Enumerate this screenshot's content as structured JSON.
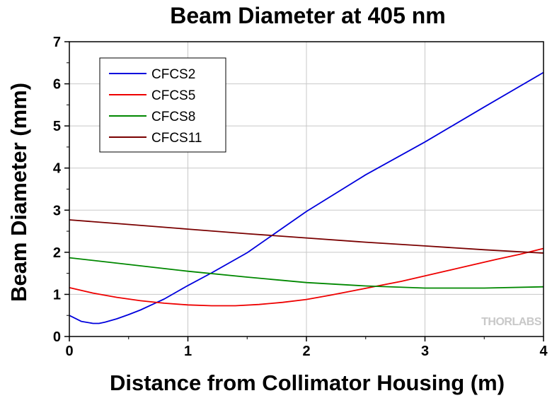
{
  "chart_data": {
    "type": "line",
    "title": "Beam Diameter at 405 nm",
    "xlabel": "Distance from Collimator Housing (m)",
    "ylabel": "Beam Diameter (mm)",
    "xlim": [
      0,
      4
    ],
    "ylim": [
      0,
      7
    ],
    "xticks": [
      "0",
      "1",
      "2",
      "3",
      "4"
    ],
    "yticks": [
      "0",
      "1",
      "2",
      "3",
      "4",
      "5",
      "6",
      "7"
    ],
    "grid": true,
    "legend_position": "top-left",
    "series": [
      {
        "name": "CFCS2",
        "color": "#0000dd",
        "x": [
          0,
          0.1,
          0.2,
          0.25,
          0.3,
          0.4,
          0.5,
          0.6,
          0.7,
          0.8,
          1.0,
          1.2,
          1.5,
          2.0,
          2.5,
          3.0,
          3.5,
          4.0
        ],
        "y": [
          0.5,
          0.36,
          0.31,
          0.31,
          0.34,
          0.42,
          0.52,
          0.63,
          0.76,
          0.89,
          1.21,
          1.51,
          1.99,
          2.97,
          3.84,
          4.62,
          5.45,
          6.27
        ]
      },
      {
        "name": "CFCS5",
        "color": "#ee0000",
        "x": [
          0,
          0.2,
          0.4,
          0.6,
          0.8,
          1.0,
          1.2,
          1.4,
          1.6,
          1.8,
          2.0,
          2.2,
          2.4,
          2.6,
          2.8,
          3.0,
          3.2,
          3.4,
          3.6,
          3.8,
          4.0
        ],
        "y": [
          1.16,
          1.03,
          0.93,
          0.85,
          0.79,
          0.75,
          0.73,
          0.73,
          0.76,
          0.81,
          0.88,
          0.98,
          1.09,
          1.2,
          1.31,
          1.44,
          1.57,
          1.7,
          1.83,
          1.95,
          2.09
        ]
      },
      {
        "name": "CFCS8",
        "color": "#008800",
        "x": [
          0,
          0.5,
          1.0,
          1.5,
          2.0,
          2.5,
          3.0,
          3.5,
          4.0
        ],
        "y": [
          1.87,
          1.71,
          1.55,
          1.41,
          1.28,
          1.2,
          1.15,
          1.15,
          1.18
        ]
      },
      {
        "name": "CFCS11",
        "color": "#7a0000",
        "x": [
          0,
          0.5,
          1.0,
          1.5,
          2.0,
          2.5,
          3.0,
          3.5,
          4.0
        ],
        "y": [
          2.77,
          2.66,
          2.55,
          2.44,
          2.34,
          2.24,
          2.15,
          2.06,
          1.98
        ]
      }
    ]
  },
  "watermark": "THORLABS"
}
